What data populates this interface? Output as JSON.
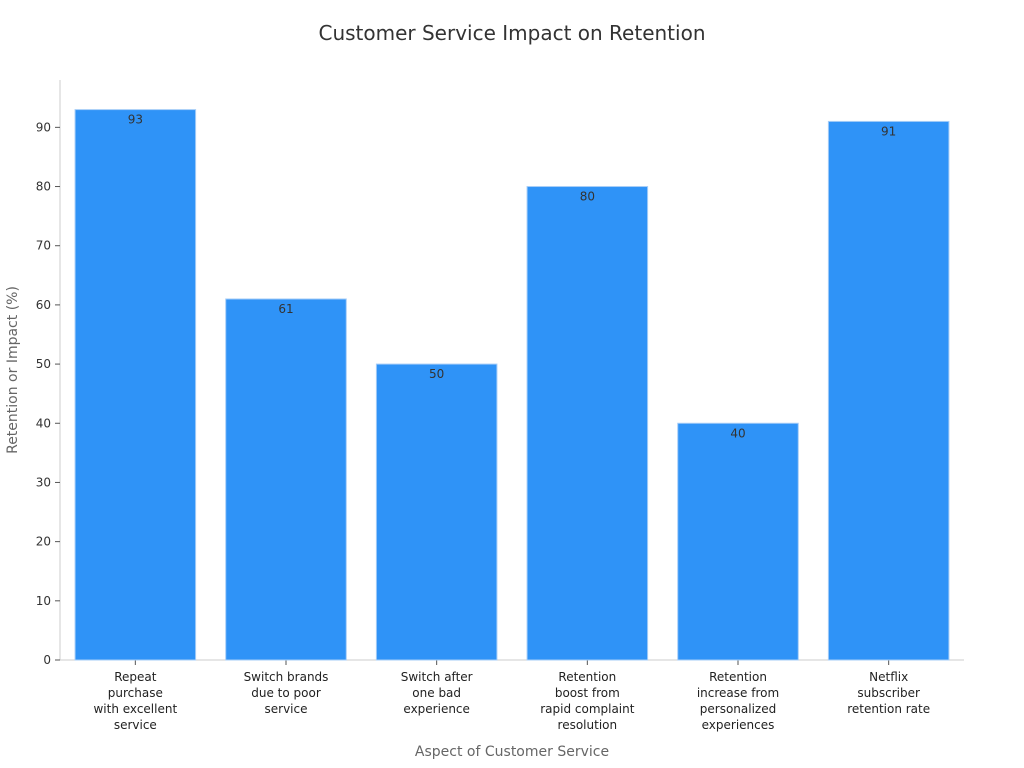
{
  "chart_data": {
    "type": "bar",
    "title": "Customer Service Impact on Retention",
    "xlabel": "Aspect of Customer Service",
    "ylabel": "Retention or Impact (%)",
    "categories": [
      "Repeat purchase with excellent service",
      "Switch brands due to poor service",
      "Switch after one bad experience",
      "Retention boost from rapid complaint resolution",
      "Retention increase from personalized experiences",
      "Netflix subscriber retention rate"
    ],
    "category_lines": [
      [
        "Repeat",
        "purchase",
        "with excellent",
        "service"
      ],
      [
        "Switch brands",
        "due to poor",
        "service"
      ],
      [
        "Switch after",
        "one bad",
        "experience"
      ],
      [
        "Retention",
        "boost from",
        "rapid complaint",
        "resolution"
      ],
      [
        "Retention",
        "increase from",
        "personalized",
        "experiences"
      ],
      [
        "Netflix",
        "subscriber",
        "retention rate"
      ]
    ],
    "values": [
      93,
      61,
      50,
      80,
      40,
      91
    ],
    "data_labels": [
      "93",
      "61",
      "50",
      "80",
      "40",
      "91"
    ],
    "yticks": [
      0,
      10,
      20,
      30,
      40,
      50,
      60,
      70,
      80,
      90
    ],
    "ytick_labels": [
      "0",
      "10",
      "20",
      "30",
      "40",
      "50",
      "60",
      "70",
      "80",
      "90"
    ],
    "ylim": [
      0,
      98
    ],
    "grid": false,
    "legend": "none",
    "bar_color": "#2f93f7"
  }
}
